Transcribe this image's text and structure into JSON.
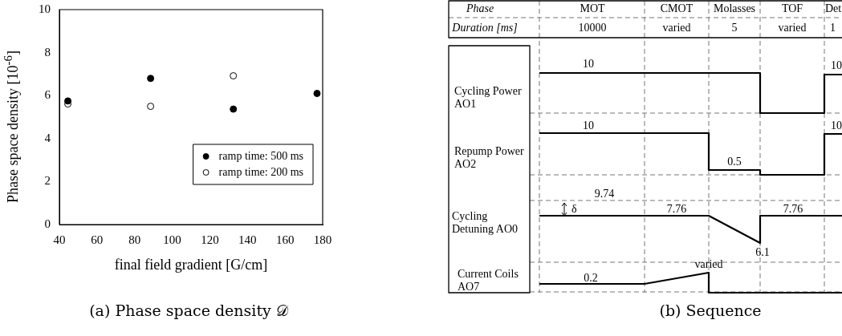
{
  "chart_data": [
    {
      "type": "scatter",
      "title": "(a) Phase space density 𝒟",
      "xlabel": "final field gradient [G/cm]",
      "ylabel": "Phase space density [10$^{-6}$]",
      "series": [
        {
          "name": "ramp time: 500 ms",
          "color": "#000000",
          "x": [
            44.5,
            88.5,
            132.5,
            177
          ],
          "values": [
            5.75,
            6.8,
            5.37,
            6.1
          ]
        },
        {
          "name": "ramp time: 200 ms",
          "color": "#ffffff",
          "x": [
            44.5,
            88.5,
            132.5
          ],
          "values": [
            5.61,
            5.5,
            6.92
          ]
        }
      ],
      "xlim": [
        40,
        180
      ],
      "xticks": [
        40,
        60,
        80,
        100,
        120,
        140,
        160,
        180
      ],
      "ylim": [
        0,
        10
      ],
      "yticks": [
        0,
        2,
        4,
        6,
        8,
        10
      ],
      "grid": false,
      "legend": "bottom right",
      "marker": "circle"
    },
    {
      "type": "other",
      "title": "(b) Sequence",
      "annotations": [
        "Phase",
        "MOT",
        "CMOT",
        "Molasses",
        "TOF",
        "Det",
        "Duration [ms]",
        "10000",
        "varied",
        "5",
        "varied",
        "1",
        "Cycling Power AO1",
        "Repump Power AO2",
        "Cycling Detuning AO0",
        "Current Coils AO7",
        "10",
        "10",
        "10",
        "10",
        "0.5",
        "9.74",
        "δ",
        "7.76",
        "7.76",
        "6.1",
        "varied",
        "0.2"
      ]
    }
  ]
}
